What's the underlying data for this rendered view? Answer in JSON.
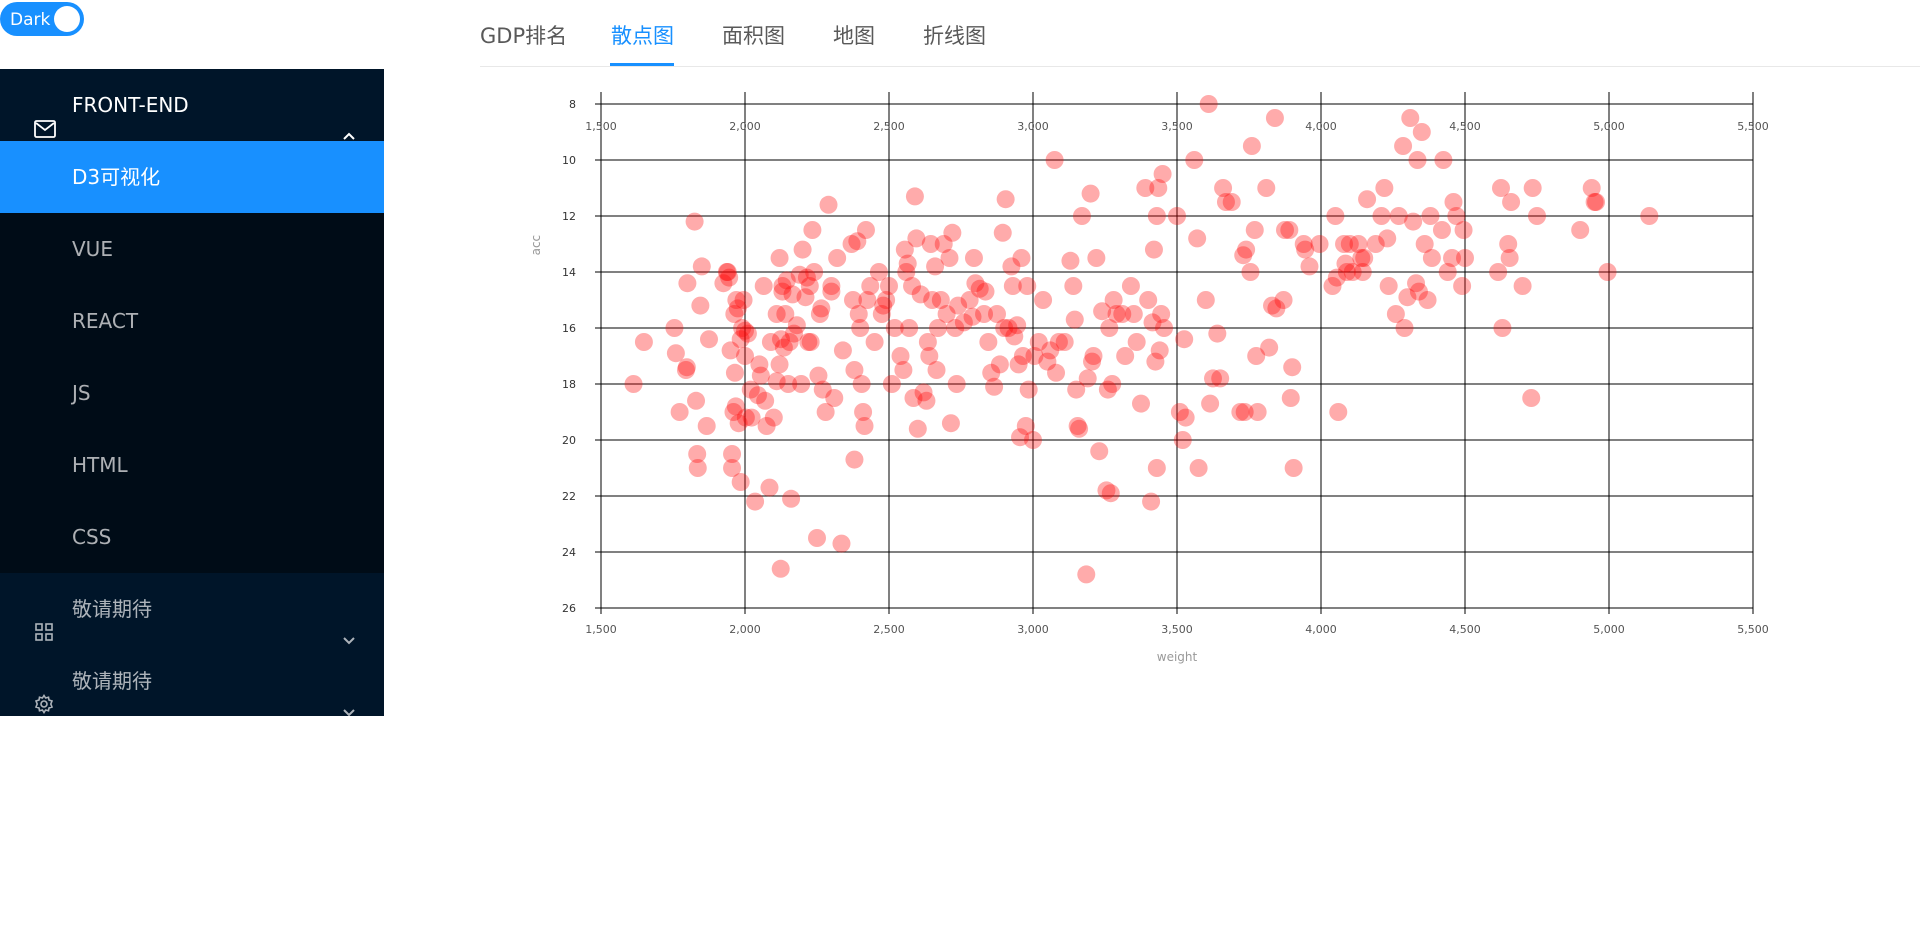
{
  "theme_toggle": {
    "label": "Dark",
    "on": true
  },
  "sidebar": {
    "group": {
      "label": "FRONT-END",
      "icon": "mail-icon",
      "expanded": true
    },
    "items": [
      {
        "label": "D3可视化",
        "active": true
      },
      {
        "label": "VUE"
      },
      {
        "label": "REACT"
      },
      {
        "label": "JS"
      },
      {
        "label": "HTML"
      },
      {
        "label": "CSS"
      }
    ],
    "menus": [
      {
        "label": "敬请期待",
        "icon": "appstore-icon"
      },
      {
        "label": "敬请期待",
        "icon": "setting-icon"
      }
    ]
  },
  "tabs": [
    {
      "label": "GDP排名"
    },
    {
      "label": "散点图",
      "active": true
    },
    {
      "label": "面积图"
    },
    {
      "label": "地图"
    },
    {
      "label": "折线图"
    }
  ],
  "colors": {
    "accent": "#1890ff",
    "sidebar_bg": "#001529",
    "submenu_bg": "#000c17",
    "point": "#ff0000"
  },
  "chart_data": {
    "type": "scatter",
    "xlabel": "weight",
    "ylabel": "acc",
    "xlim": [
      1500,
      5500
    ],
    "ylim": [
      8,
      26
    ],
    "y_inverted": true,
    "grid": true,
    "x_ticks": [
      "1,500",
      "2,000",
      "2,500",
      "3,000",
      "3,500",
      "4,000",
      "4,500",
      "5,000",
      "5,500"
    ],
    "y_ticks": [
      "8",
      "10",
      "12",
      "14",
      "16",
      "18",
      "20",
      "22",
      "24",
      "26"
    ],
    "points": [
      [
        1613,
        18
      ],
      [
        1649,
        16.5
      ],
      [
        1755,
        16
      ],
      [
        1760,
        16.9
      ],
      [
        1773,
        19
      ],
      [
        1795,
        17.5
      ],
      [
        1798,
        17.4
      ],
      [
        1800,
        14.4
      ],
      [
        1825,
        12.2
      ],
      [
        1830,
        18.6
      ],
      [
        1834,
        20.5
      ],
      [
        1836,
        21
      ],
      [
        1845,
        15.2
      ],
      [
        1850,
        13.8
      ],
      [
        1867,
        19.5
      ],
      [
        1875,
        16.4
      ],
      [
        1925,
        14.4
      ],
      [
        1937,
        14
      ],
      [
        1940,
        14
      ],
      [
        1945,
        14.2
      ],
      [
        1950,
        16.8
      ],
      [
        1955,
        20.5
      ],
      [
        1955,
        21
      ],
      [
        1960,
        19
      ],
      [
        1963,
        15.5
      ],
      [
        1965,
        17.6
      ],
      [
        1968,
        18.8
      ],
      [
        1970,
        15
      ],
      [
        1975,
        15.3
      ],
      [
        1978,
        19.4
      ],
      [
        1985,
        21.5
      ],
      [
        1985,
        16.4
      ],
      [
        1990,
        16
      ],
      [
        1995,
        15
      ],
      [
        2000,
        16.1
      ],
      [
        2000,
        17
      ],
      [
        2003,
        19.2
      ],
      [
        2010,
        16.2
      ],
      [
        2020,
        18.2
      ],
      [
        2023,
        19.2
      ],
      [
        2035,
        22.2
      ],
      [
        2045,
        18.4
      ],
      [
        2050,
        17.3
      ],
      [
        2055,
        17.7
      ],
      [
        2065,
        14.5
      ],
      [
        2070,
        18.6
      ],
      [
        2075,
        19.5
      ],
      [
        2085,
        21.7
      ],
      [
        2090,
        16.5
      ],
      [
        2100,
        19.2
      ],
      [
        2110,
        15.5
      ],
      [
        2110,
        17.9
      ],
      [
        2120,
        13.5
      ],
      [
        2120,
        17.3
      ],
      [
        2124,
        24.6
      ],
      [
        2125,
        16.4
      ],
      [
        2130,
        14.5
      ],
      [
        2130,
        14.7
      ],
      [
        2135,
        16.7
      ],
      [
        2140,
        15.5
      ],
      [
        2145,
        14.3
      ],
      [
        2150,
        18
      ],
      [
        2155,
        16.5
      ],
      [
        2160,
        22.1
      ],
      [
        2165,
        14.8
      ],
      [
        2170,
        16.2
      ],
      [
        2180,
        15.9
      ],
      [
        2190,
        14.1
      ],
      [
        2195,
        18
      ],
      [
        2200,
        13.2
      ],
      [
        2210,
        14.9
      ],
      [
        2215,
        14.2
      ],
      [
        2220,
        16.5
      ],
      [
        2225,
        14.5
      ],
      [
        2228,
        16.5
      ],
      [
        2234,
        12.5
      ],
      [
        2240,
        14
      ],
      [
        2250,
        23.5
      ],
      [
        2255,
        17.7
      ],
      [
        2260,
        15.5
      ],
      [
        2265,
        15.3
      ],
      [
        2270,
        18.2
      ],
      [
        2280,
        19
      ],
      [
        2290,
        11.6
      ],
      [
        2300,
        14.5
      ],
      [
        2300,
        14.7
      ],
      [
        2310,
        18.5
      ],
      [
        2320,
        13.5
      ],
      [
        2335,
        23.7
      ],
      [
        2340,
        16.8
      ],
      [
        2370,
        13
      ],
      [
        2375,
        15
      ],
      [
        2380,
        17.5
      ],
      [
        2380,
        20.7
      ],
      [
        2390,
        12.9
      ],
      [
        2395,
        15.5
      ],
      [
        2400,
        16
      ],
      [
        2405,
        18
      ],
      [
        2410,
        19
      ],
      [
        2415,
        19.5
      ],
      [
        2420,
        12.5
      ],
      [
        2425,
        15
      ],
      [
        2435,
        14.5
      ],
      [
        2450,
        16.5
      ],
      [
        2465,
        14
      ],
      [
        2475,
        15.5
      ],
      [
        2480,
        15.2
      ],
      [
        2490,
        15
      ],
      [
        2500,
        14.5
      ],
      [
        2510,
        18
      ],
      [
        2520,
        16
      ],
      [
        2540,
        17
      ],
      [
        2550,
        17.5
      ],
      [
        2555,
        13.2
      ],
      [
        2560,
        14
      ],
      [
        2565,
        13.7
      ],
      [
        2570,
        16
      ],
      [
        2580,
        14.5
      ],
      [
        2585,
        18.5
      ],
      [
        2590,
        11.3
      ],
      [
        2595,
        12.8
      ],
      [
        2600,
        19.6
      ],
      [
        2610,
        14.8
      ],
      [
        2620,
        18.3
      ],
      [
        2630,
        18.6
      ],
      [
        2635,
        16.5
      ],
      [
        2640,
        17
      ],
      [
        2645,
        13
      ],
      [
        2650,
        15
      ],
      [
        2660,
        13.8
      ],
      [
        2665,
        17.5
      ],
      [
        2670,
        16
      ],
      [
        2680,
        15
      ],
      [
        2690,
        13
      ],
      [
        2700,
        15.5
      ],
      [
        2710,
        13.5
      ],
      [
        2715,
        19.4
      ],
      [
        2720,
        12.6
      ],
      [
        2730,
        16
      ],
      [
        2735,
        18
      ],
      [
        2740,
        15.2
      ],
      [
        2760,
        15.8
      ],
      [
        2780,
        15
      ],
      [
        2790,
        15.6
      ],
      [
        2795,
        13.5
      ],
      [
        2800,
        14.4
      ],
      [
        2815,
        14.6
      ],
      [
        2830,
        15.5
      ],
      [
        2835,
        14.7
      ],
      [
        2845,
        16.5
      ],
      [
        2855,
        17.6
      ],
      [
        2865,
        18.1
      ],
      [
        2875,
        15.5
      ],
      [
        2885,
        17.3
      ],
      [
        2895,
        12.6
      ],
      [
        2900,
        16
      ],
      [
        2905,
        11.4
      ],
      [
        2915,
        16
      ],
      [
        2925,
        13.8
      ],
      [
        2930,
        14.5
      ],
      [
        2935,
        16.3
      ],
      [
        2945,
        15.9
      ],
      [
        2950,
        17.3
      ],
      [
        2955,
        19.9
      ],
      [
        2960,
        13.5
      ],
      [
        2965,
        17
      ],
      [
        2975,
        19.5
      ],
      [
        2980,
        14.5
      ],
      [
        2985,
        18.2
      ],
      [
        3000,
        20
      ],
      [
        3005,
        17
      ],
      [
        3020,
        16.5
      ],
      [
        3035,
        15
      ],
      [
        3050,
        17.2
      ],
      [
        3060,
        16.8
      ],
      [
        3075,
        10
      ],
      [
        3080,
        17.6
      ],
      [
        3090,
        16.5
      ],
      [
        3110,
        16.5
      ],
      [
        3130,
        13.6
      ],
      [
        3140,
        14.5
      ],
      [
        3145,
        15.7
      ],
      [
        3150,
        18.2
      ],
      [
        3155,
        19.5
      ],
      [
        3160,
        19.6
      ],
      [
        3170,
        12
      ],
      [
        3185,
        24.8
      ],
      [
        3190,
        17.8
      ],
      [
        3200,
        11.2
      ],
      [
        3205,
        17.2
      ],
      [
        3210,
        17
      ],
      [
        3220,
        13.5
      ],
      [
        3230,
        20.4
      ],
      [
        3240,
        15.4
      ],
      [
        3255,
        21.8
      ],
      [
        3260,
        18.2
      ],
      [
        3265,
        16
      ],
      [
        3270,
        21.9
      ],
      [
        3275,
        18
      ],
      [
        3280,
        15
      ],
      [
        3290,
        15.5
      ],
      [
        3310,
        15.5
      ],
      [
        3320,
        17
      ],
      [
        3340,
        14.5
      ],
      [
        3350,
        15.5
      ],
      [
        3360,
        16.5
      ],
      [
        3375,
        18.7
      ],
      [
        3390,
        11
      ],
      [
        3400,
        15
      ],
      [
        3410,
        22.2
      ],
      [
        3415,
        15.8
      ],
      [
        3420,
        13.2
      ],
      [
        3425,
        17.2
      ],
      [
        3430,
        12
      ],
      [
        3430,
        21
      ],
      [
        3435,
        11
      ],
      [
        3440,
        16.8
      ],
      [
        3445,
        15.5
      ],
      [
        3450,
        10.5
      ],
      [
        3455,
        16
      ],
      [
        3500,
        12
      ],
      [
        3510,
        19
      ],
      [
        3520,
        20
      ],
      [
        3525,
        16.4
      ],
      [
        3530,
        19.2
      ],
      [
        3560,
        10
      ],
      [
        3570,
        12.8
      ],
      [
        3575,
        21
      ],
      [
        3600,
        15
      ],
      [
        3610,
        8
      ],
      [
        3615,
        18.7
      ],
      [
        3625,
        17.8
      ],
      [
        3640,
        16.2
      ],
      [
        3650,
        17.8
      ],
      [
        3660,
        11
      ],
      [
        3670,
        11.5
      ],
      [
        3690,
        11.5
      ],
      [
        3720,
        19
      ],
      [
        3730,
        13.4
      ],
      [
        3735,
        19
      ],
      [
        3740,
        13.2
      ],
      [
        3755,
        14
      ],
      [
        3760,
        9.5
      ],
      [
        3770,
        12.5
      ],
      [
        3775,
        17
      ],
      [
        3780,
        19
      ],
      [
        3810,
        11
      ],
      [
        3820,
        16.7
      ],
      [
        3830,
        15.2
      ],
      [
        3840,
        8.5
      ],
      [
        3845,
        15.3
      ],
      [
        3870,
        15
      ],
      [
        3875,
        12.5
      ],
      [
        3890,
        12.5
      ],
      [
        3895,
        18.5
      ],
      [
        3900,
        17.4
      ],
      [
        3905,
        21
      ],
      [
        3940,
        13
      ],
      [
        3945,
        13.2
      ],
      [
        3960,
        13.8
      ],
      [
        3995,
        13
      ],
      [
        4040,
        14.5
      ],
      [
        4050,
        12
      ],
      [
        4055,
        14.2
      ],
      [
        4060,
        19
      ],
      [
        4080,
        13
      ],
      [
        4085,
        13.7
      ],
      [
        4090,
        14
      ],
      [
        4100,
        13
      ],
      [
        4110,
        14
      ],
      [
        4130,
        13
      ],
      [
        4140,
        13.5
      ],
      [
        4145,
        14
      ],
      [
        4150,
        13.5
      ],
      [
        4160,
        11.4
      ],
      [
        4190,
        13
      ],
      [
        4210,
        12
      ],
      [
        4220,
        11
      ],
      [
        4230,
        12.8
      ],
      [
        4235,
        14.5
      ],
      [
        4260,
        15.5
      ],
      [
        4270,
        12
      ],
      [
        4285,
        9.5
      ],
      [
        4290,
        16
      ],
      [
        4300,
        14.9
      ],
      [
        4310,
        8.5
      ],
      [
        4320,
        12.2
      ],
      [
        4330,
        14.4
      ],
      [
        4335,
        10
      ],
      [
        4340,
        14.7
      ],
      [
        4350,
        9
      ],
      [
        4360,
        13
      ],
      [
        4370,
        15
      ],
      [
        4380,
        12
      ],
      [
        4385,
        13.5
      ],
      [
        4420,
        12.5
      ],
      [
        4425,
        10
      ],
      [
        4440,
        14
      ],
      [
        4455,
        13.5
      ],
      [
        4460,
        11.5
      ],
      [
        4470,
        12
      ],
      [
        4490,
        14.5
      ],
      [
        4495,
        12.5
      ],
      [
        4500,
        13.5
      ],
      [
        4615,
        14
      ],
      [
        4625,
        11
      ],
      [
        4630,
        16
      ],
      [
        4650,
        13
      ],
      [
        4655,
        13.5
      ],
      [
        4660,
        11.5
      ],
      [
        4700,
        14.5
      ],
      [
        4730,
        18.5
      ],
      [
        4735,
        11
      ],
      [
        4750,
        12
      ],
      [
        4900,
        12.5
      ],
      [
        4940,
        11
      ],
      [
        4950,
        11.5
      ],
      [
        4955,
        11.5
      ],
      [
        4995,
        14
      ],
      [
        5140,
        12
      ]
    ]
  }
}
